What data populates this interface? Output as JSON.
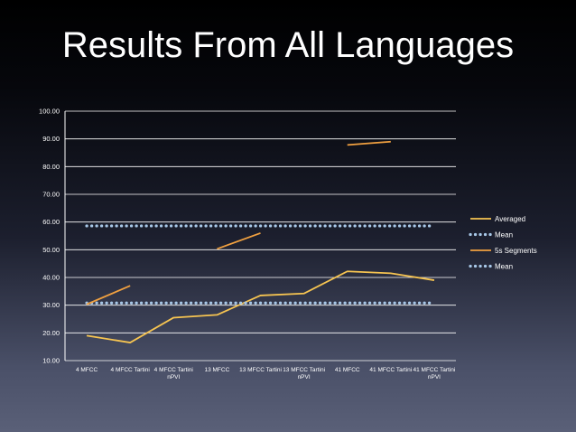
{
  "slide": {
    "title": "Results From All Languages"
  },
  "chart_data": {
    "type": "line",
    "title": "",
    "xlabel": "",
    "ylabel": "",
    "ylim": [
      10,
      100
    ],
    "yticks": [
      "10.00",
      "20.00",
      "30.00",
      "40.00",
      "50.00",
      "60.00",
      "70.00",
      "80.00",
      "90.00",
      "100.00"
    ],
    "grid": true,
    "legend": "right",
    "categories": [
      [
        "4 MFCC"
      ],
      [
        "4 MFCC Tartini"
      ],
      [
        "4 MFCC Tartini",
        "nPVI"
      ],
      [
        "13 MFCC"
      ],
      [
        "13 MFCC Tartini"
      ],
      [
        "13 MFCC Tartini",
        "nPVI"
      ],
      [
        "41 MFCC"
      ],
      [
        "41 MFCC Tartini"
      ],
      [
        "41 MFCC Tartini",
        "nPVI"
      ]
    ],
    "series": [
      {
        "name": "Averaged",
        "style": "solid",
        "color": "#f6c451",
        "values": [
          19.0,
          16.5,
          25.5,
          26.5,
          33.5,
          34.2,
          42.2,
          41.5,
          39.0
        ]
      },
      {
        "name": "Mean",
        "style": "dotted",
        "color": "#a8c8e8",
        "values": [
          30.8,
          30.8,
          30.8,
          30.8,
          30.8,
          30.8,
          30.8,
          30.8,
          30.8
        ]
      },
      {
        "name": "5s Segments",
        "style": "solid",
        "color": "#f0a040",
        "values": [
          30.3,
          37.0,
          null,
          50.3,
          56.0,
          null,
          87.8,
          89.0,
          null
        ]
      },
      {
        "name": "Mean",
        "style": "dotted",
        "color": "#a8c8e8",
        "values": [
          58.6,
          58.6,
          58.6,
          58.6,
          58.6,
          58.6,
          58.6,
          58.6,
          58.6
        ]
      }
    ]
  }
}
